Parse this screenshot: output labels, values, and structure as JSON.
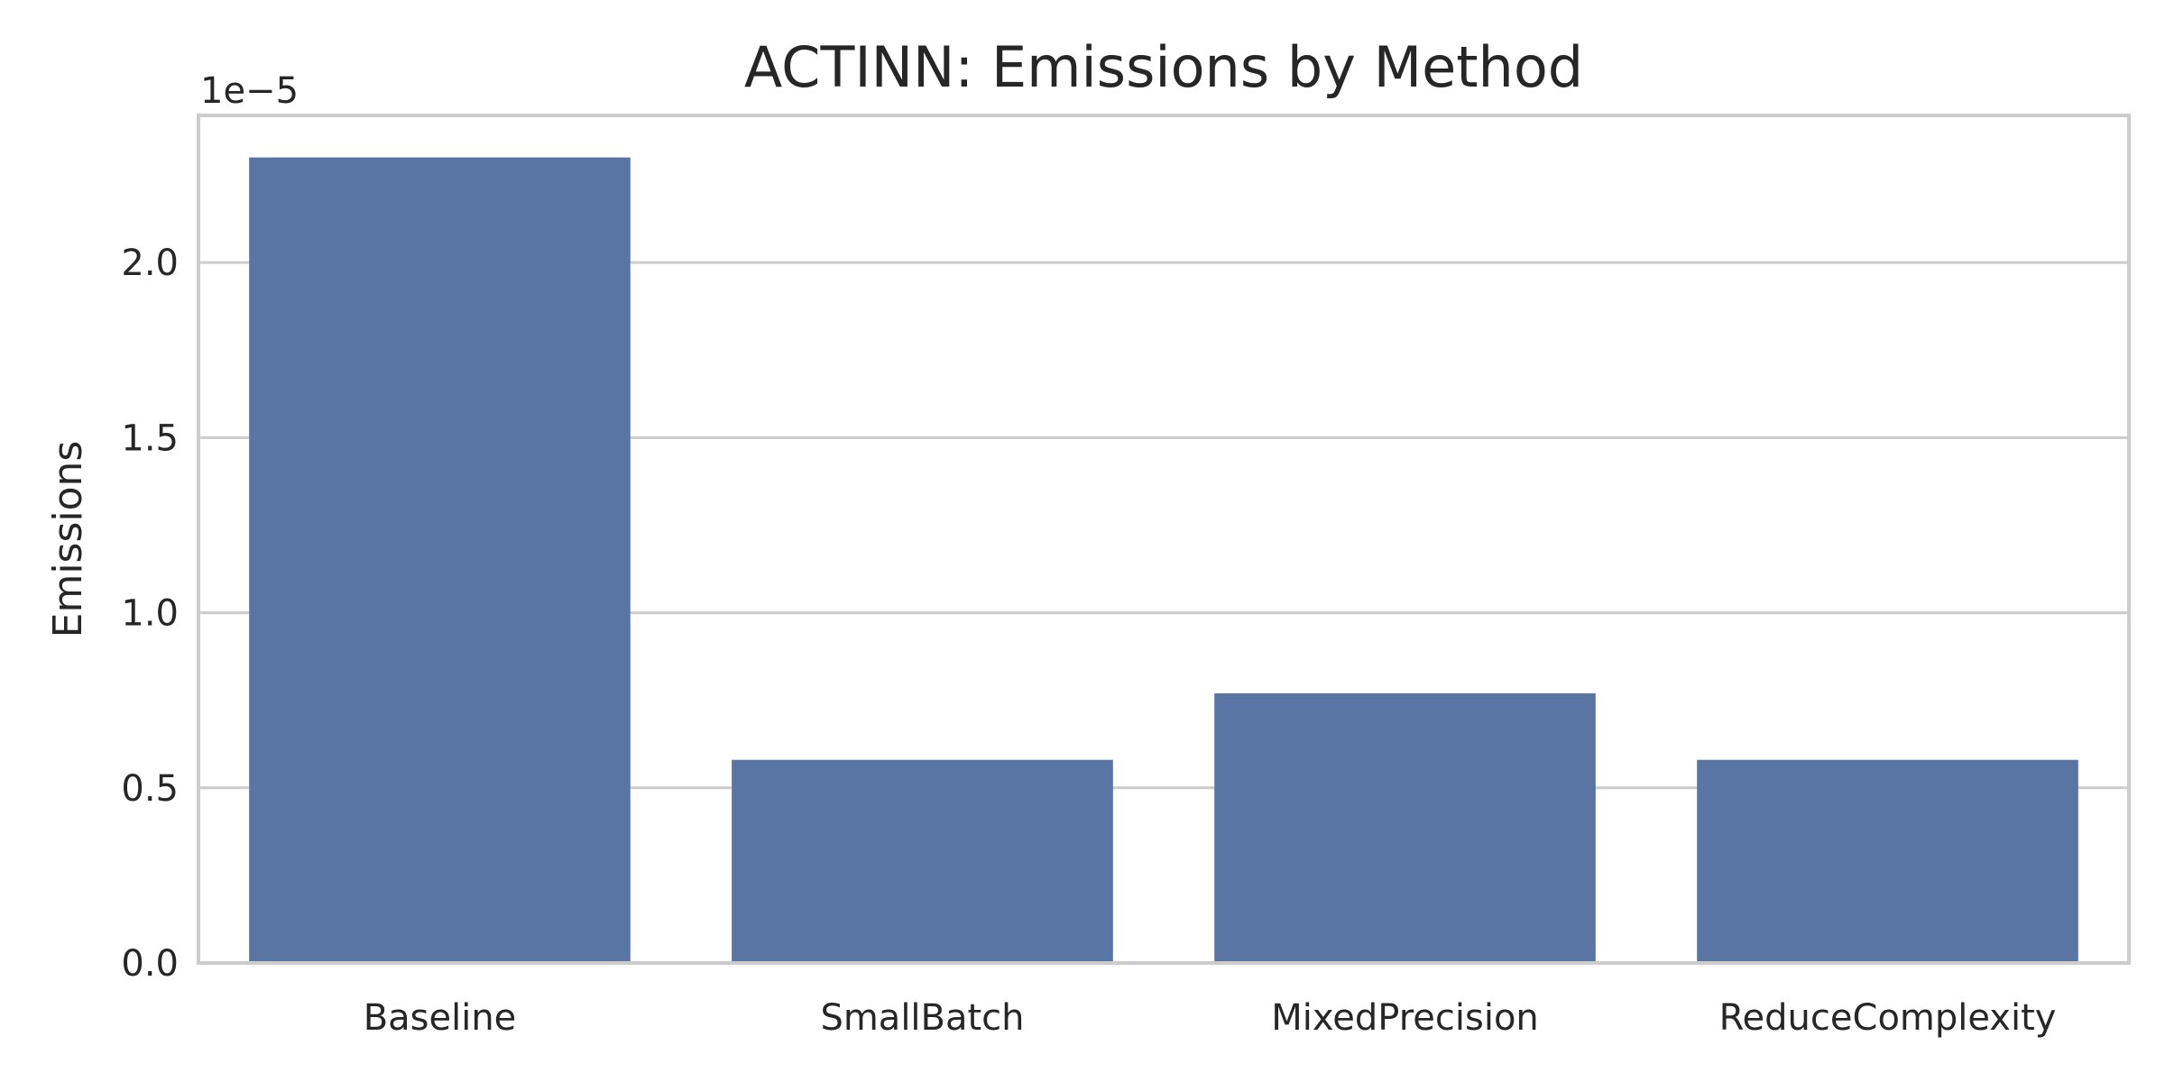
{
  "chart_data": {
    "type": "bar",
    "title": "ACTINN: Emissions by Method",
    "xlabel": "",
    "ylabel": "Emissions",
    "y_offset_label": "1e−5",
    "y_scale_exponent": -5,
    "categories": [
      "Baseline",
      "SmallBatch",
      "MixedPrecision",
      "ReduceComplexity"
    ],
    "values": [
      2.3e-05,
      5.8e-06,
      7.7e-06,
      5.8e-06
    ],
    "ylim": [
      0,
      2.42e-05
    ],
    "yticks": [
      0,
      5e-06,
      1e-05,
      1.5e-05,
      2e-05
    ],
    "ytick_labels": [
      "0.0",
      "0.5",
      "1.0",
      "1.5",
      "2.0"
    ],
    "grid": true,
    "grid_axis": "y",
    "bar_color": "#5975a4",
    "grid_color": "#cccccc",
    "spine_color": "#cccccc",
    "text_color": "#262626",
    "background": "#ffffff"
  }
}
